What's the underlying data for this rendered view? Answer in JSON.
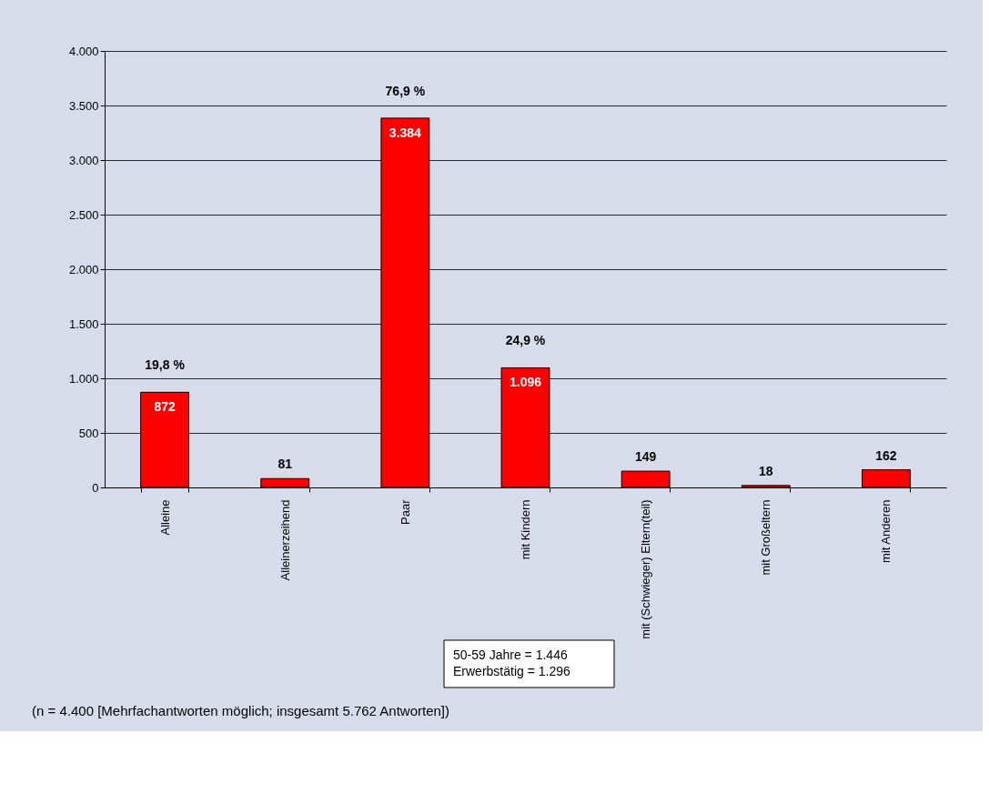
{
  "chart_data": {
    "type": "bar",
    "categories": [
      "Alleine",
      "Alleinerzeihend",
      "Paar",
      "mit Kindern",
      "mit (Schwieger) Eltern(teil)",
      "mit Großeltern",
      "mit Anderen"
    ],
    "values": [
      872,
      81,
      3384,
      1096,
      149,
      18,
      162
    ],
    "value_labels": [
      "872",
      "81",
      "3.384",
      "1.096",
      "149",
      "18",
      "162"
    ],
    "color": "#ff0000",
    "ylim": [
      0,
      4000
    ],
    "yticks": [
      {
        "value": 0,
        "label": "0"
      },
      {
        "value": 500,
        "label": "500"
      },
      {
        "value": 1000,
        "label": "1.000"
      },
      {
        "value": 1500,
        "label": "1.500"
      },
      {
        "value": 2000,
        "label": "2.000"
      },
      {
        "value": 2500,
        "label": "2.500"
      },
      {
        "value": 3000,
        "label": "3.000"
      },
      {
        "value": 3500,
        "label": "3.500"
      },
      {
        "value": 4000,
        "label": "4.000"
      }
    ],
    "grid": "y",
    "annotations": [
      {
        "text": "19,8 %",
        "x": "Alleine",
        "y": 872
      },
      {
        "text": "76,9 %",
        "x": "Paar",
        "y": 3384
      },
      {
        "text": "24,9 %",
        "x": "mit Kindern",
        "y": 1096
      },
      "50-59 Jahre  = 1.446\nErwerbstätig = 1.296",
      "(n = 4.400 [Mehrfachantworten möglich; insgesamt 5.762 Antworten])"
    ]
  }
}
